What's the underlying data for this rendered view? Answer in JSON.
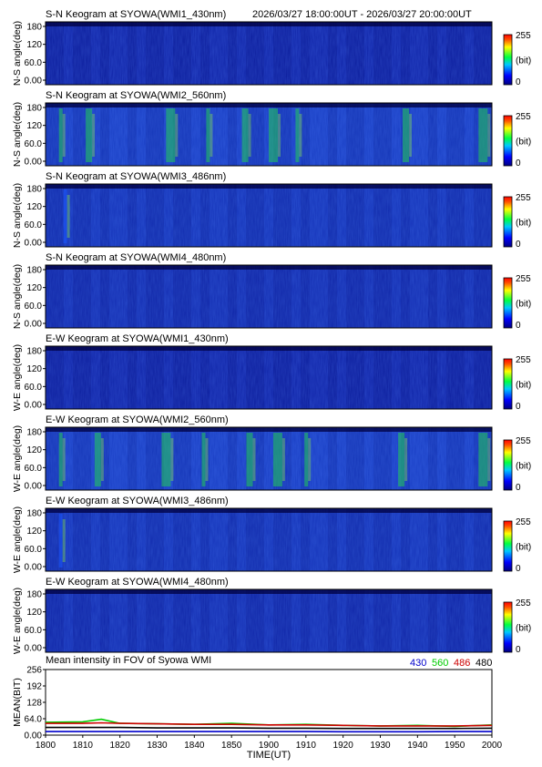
{
  "header": {
    "time_range": "2026/03/27 18:00:00UT - 2026/03/27 20:00:00UT"
  },
  "colorbar": {
    "max_label": "255",
    "min_label": "0",
    "unit_label": "(bit)"
  },
  "panels": [
    {
      "title": "S-N Keogram at SYOWA(WMI1_430nm)",
      "ylabel": "N-S angle(deg)",
      "ticks": [
        "180",
        "120",
        "60.0",
        "0.00"
      ],
      "intensity": 0.12,
      "accent": "#000080",
      "streaks": []
    },
    {
      "title": "S-N Keogram at SYOWA(WMI2_560nm)",
      "ylabel": "N-S angle(deg)",
      "ticks": [
        "180",
        "120",
        "60.0",
        "0.00"
      ],
      "intensity": 0.42,
      "accent": "#22cc55",
      "streaks": [
        0.03,
        0.09,
        0.27,
        0.36,
        0.44,
        0.5,
        0.56,
        0.8,
        0.97
      ]
    },
    {
      "title": "S-N Keogram at SYOWA(WMI3_486nm)",
      "ylabel": "N-S angle(deg)",
      "ticks": [
        "180",
        "120",
        "60.0",
        "0.00"
      ],
      "intensity": 0.3,
      "accent": "#1a55ff",
      "streaks": [
        0.04
      ]
    },
    {
      "title": "S-N Keogram at SYOWA(WMI4_480nm)",
      "ylabel": "N-S angle(deg)",
      "ticks": [
        "180",
        "120",
        "60.0",
        "0.00"
      ],
      "intensity": 0.22,
      "accent": "#1a44ee",
      "streaks": []
    },
    {
      "title": "E-W Keogram at SYOWA(WMI1_430nm)",
      "ylabel": "W-E angle(deg)",
      "ticks": [
        "180",
        "120",
        "60.0",
        "0.00"
      ],
      "intensity": 0.12,
      "accent": "#000080",
      "streaks": []
    },
    {
      "title": "E-W Keogram at SYOWA(WMI2_560nm)",
      "ylabel": "W-E angle(deg)",
      "ticks": [
        "180",
        "120",
        "60.0",
        "0.00"
      ],
      "intensity": 0.42,
      "accent": "#22cc55",
      "streaks": [
        0.03,
        0.11,
        0.26,
        0.35,
        0.45,
        0.51,
        0.58,
        0.79,
        0.97
      ]
    },
    {
      "title": "E-W Keogram at SYOWA(WMI3_486nm)",
      "ylabel": "W-E angle(deg)",
      "ticks": [
        "180",
        "120",
        "60.0",
        "0.00"
      ],
      "intensity": 0.3,
      "accent": "#1a55ff",
      "streaks": [
        0.03
      ]
    },
    {
      "title": "E-W Keogram at SYOWA(WMI4_480nm)",
      "ylabel": "W-E angle(deg)",
      "ticks": [
        "180",
        "120",
        "60.0",
        "0.00"
      ],
      "intensity": 0.22,
      "accent": "#1a44ee",
      "streaks": []
    }
  ],
  "chart_data": {
    "type": "line",
    "title": "Mean intensity in FOV of Syowa WMI",
    "xlabel": "TIME(UT)",
    "ylabel": "MEAN(BIT)",
    "xlim": [
      1800,
      2000
    ],
    "ylim": [
      0,
      256
    ],
    "x_ticks": [
      "1800",
      "1810",
      "1820",
      "1830",
      "1840",
      "1850",
      "1900",
      "1910",
      "1920",
      "1930",
      "1940",
      "1950",
      "2000"
    ],
    "y_ticks": [
      "256",
      "192",
      "128",
      "64.0",
      "0.00"
    ],
    "x": [
      0,
      10,
      15,
      20,
      30,
      40,
      50,
      60,
      70,
      80,
      90,
      100,
      110,
      120
    ],
    "series": [
      {
        "name": "430",
        "color": "#0000cc",
        "values": [
          14,
          14,
          14,
          14,
          14,
          14,
          14,
          14,
          14,
          13,
          13,
          13,
          14,
          14
        ]
      },
      {
        "name": "560",
        "color": "#00cc00",
        "values": [
          50,
          52,
          62,
          46,
          44,
          42,
          46,
          40,
          42,
          38,
          36,
          38,
          34,
          40
        ]
      },
      {
        "name": "486",
        "color": "#cc0000",
        "values": [
          46,
          46,
          48,
          46,
          44,
          42,
          42,
          40,
          40,
          38,
          36,
          36,
          36,
          38
        ]
      },
      {
        "name": "480",
        "color": "#000000",
        "values": [
          30,
          30,
          30,
          30,
          28,
          28,
          28,
          27,
          27,
          26,
          26,
          26,
          26,
          27
        ]
      }
    ]
  }
}
